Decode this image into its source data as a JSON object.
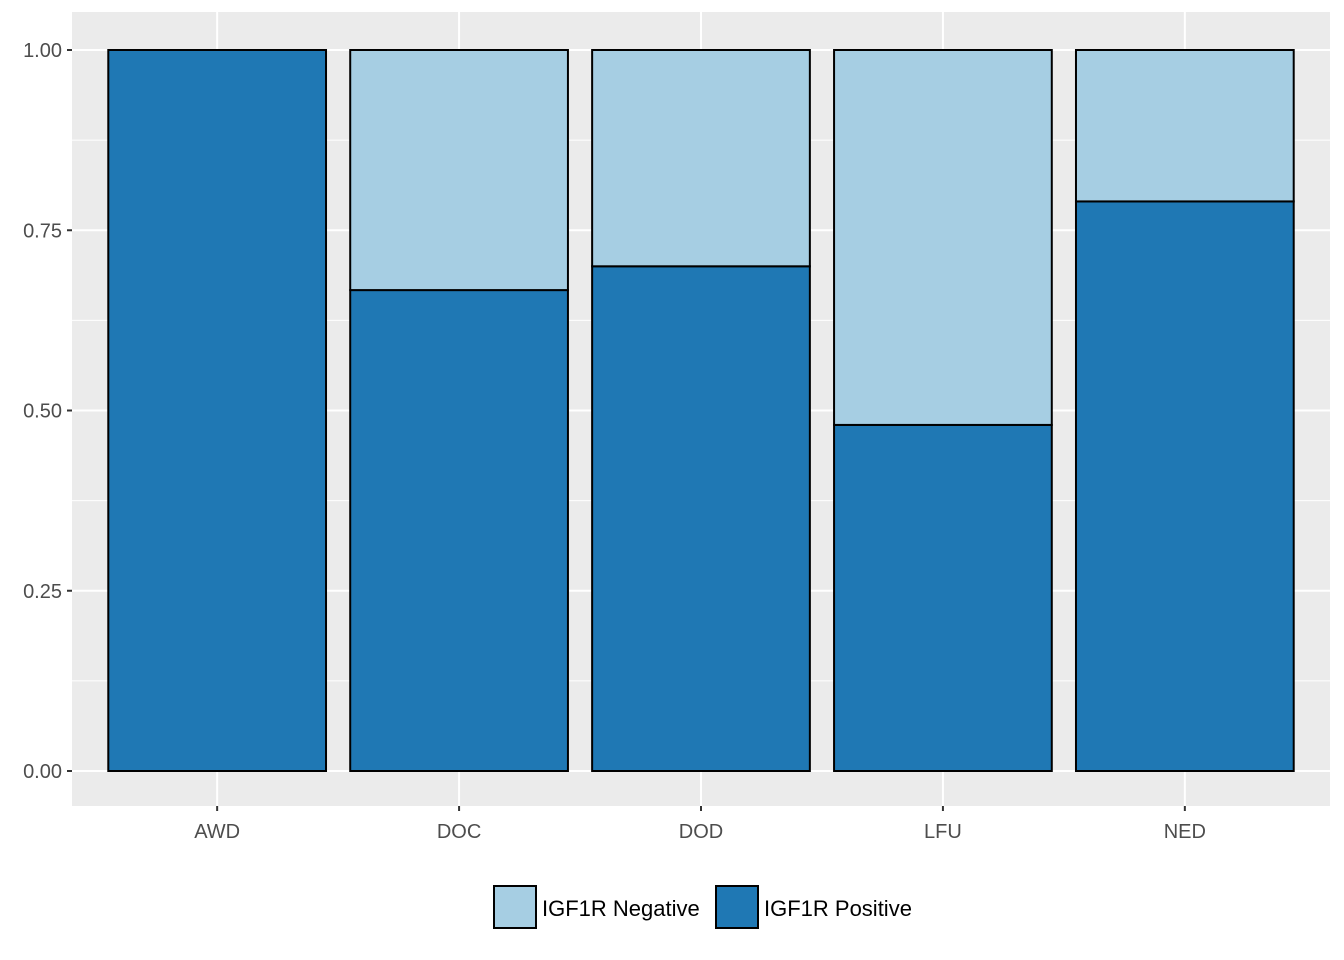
{
  "chart_data": {
    "type": "bar",
    "stacked": true,
    "categories": [
      "AWD",
      "DOC",
      "DOD",
      "LFU",
      "NED"
    ],
    "series": [
      {
        "name": "IGF1R Negative",
        "color": "#a6cee3",
        "values": [
          0.0,
          0.333,
          0.3,
          0.52,
          0.21
        ]
      },
      {
        "name": "IGF1R Positive",
        "color": "#1f78b4",
        "values": [
          1.0,
          0.667,
          0.7,
          0.48,
          0.79
        ]
      }
    ],
    "stack_order_bottom_to_top": [
      "IGF1R Positive",
      "IGF1R Negative"
    ],
    "y_ticks": [
      "0.00",
      "0.25",
      "0.50",
      "0.75",
      "1.00"
    ],
    "y_tick_values": [
      0,
      0.25,
      0.5,
      0.75,
      1.0
    ],
    "ylim": [
      -0.05,
      1.05
    ],
    "title": "",
    "xlabel": "",
    "ylabel": "",
    "grid": true,
    "panel_background": "#ebebeb",
    "legend_position": "bottom"
  }
}
